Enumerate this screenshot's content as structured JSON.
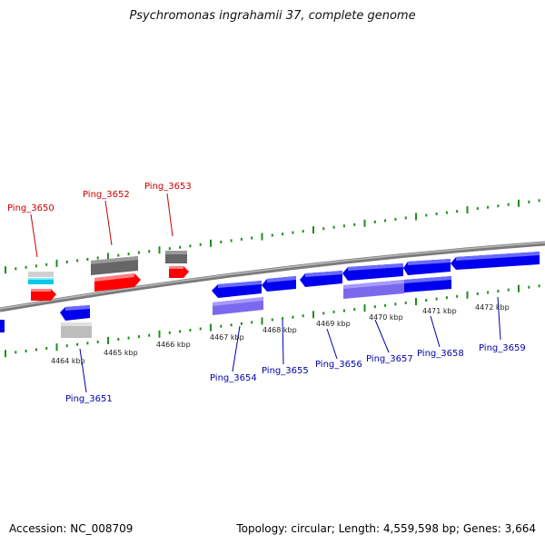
{
  "title": "Psychromonas ingrahamii 37, complete genome",
  "accession": "Accession: NC_008709",
  "summary": "Topology: circular; Length: 4,559,598 bp; Genes: 3,664",
  "colors": {
    "forward_gene": "#ff0000",
    "reverse_gene": "#0000ee",
    "forward_label": "#cc0000",
    "reverse_label": "#0000aa",
    "backbone": "#888888",
    "ticks": "#228b22",
    "gray_feature": "#666666",
    "purple_feature": "#7b68ee",
    "cyan_feature": "#00c8e8"
  },
  "kbp_labels": [
    "4464 kbp",
    "4465 kbp",
    "4466 kbp",
    "4467 kbp",
    "4468 kbp",
    "4469 kbp",
    "4470 kbp",
    "4471 kbp",
    "4472 kbp"
  ],
  "forward_genes": [
    "Ping_3650",
    "Ping_3652",
    "Ping_3653"
  ],
  "reverse_genes": [
    "Ping_3651",
    "Ping_3654",
    "Ping_3655",
    "Ping_3656",
    "Ping_3657",
    "Ping_3658",
    "Ping_3659"
  ]
}
